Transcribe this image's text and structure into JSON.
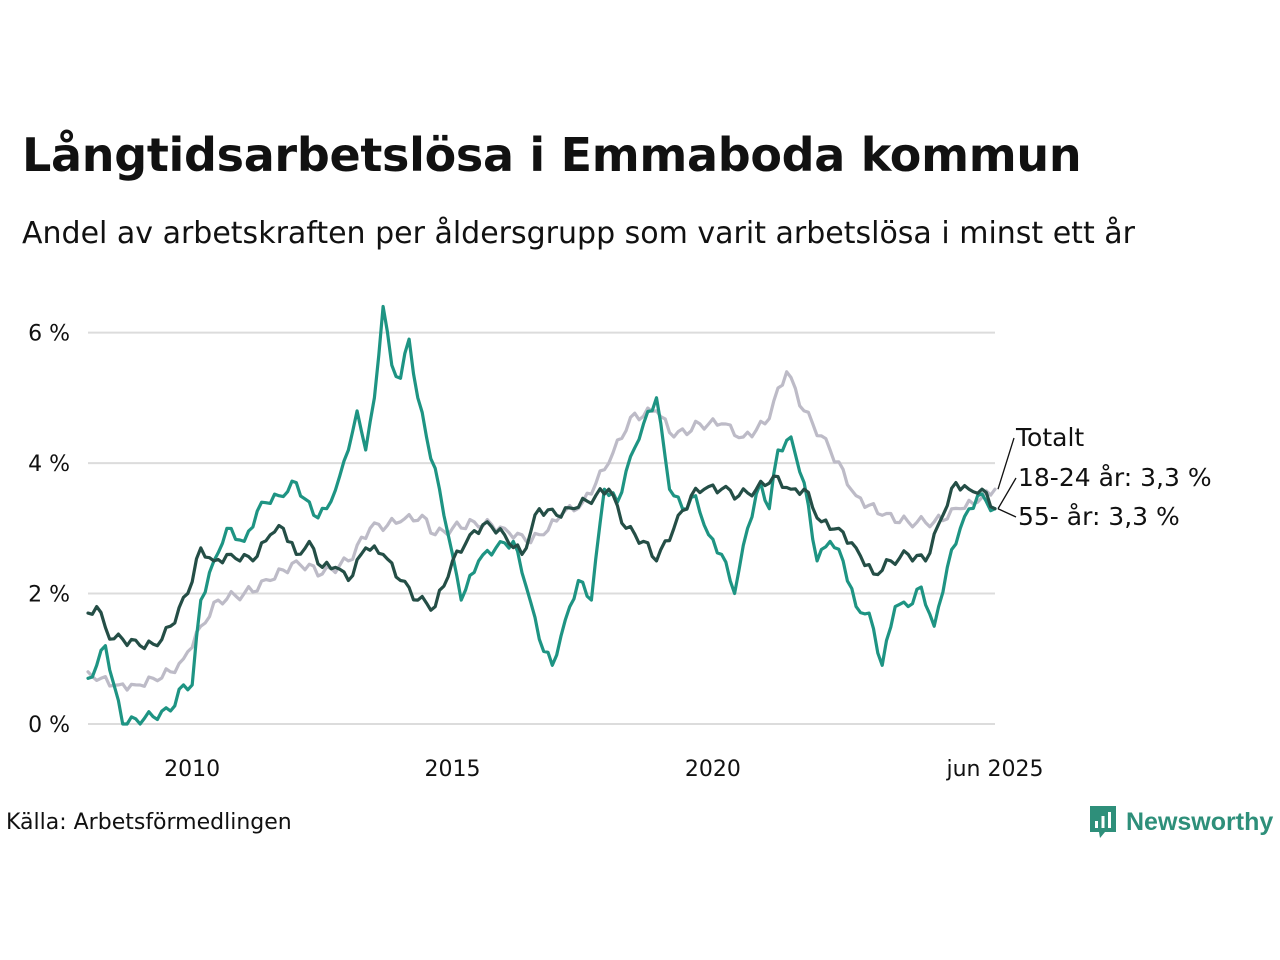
{
  "header": {
    "title": "Långtidsarbetslösa i Emmaboda kommun",
    "subtitle": "Andel av arbetskraften per åldersgrupp som varit arbetslösa i minst ett år"
  },
  "footer": {
    "source": "Källa: Arbetsförmedlingen",
    "brand": "Newsworthy",
    "brand_icon": "bar-chart-speech-bubble-icon"
  },
  "colors": {
    "totalt": "#bdbbc7",
    "age_18_24": "#1e9483",
    "age_55": "#244e46",
    "grid": "#dcdcdc",
    "brand": "#2e8f7a"
  },
  "chart_data": {
    "type": "line",
    "title": "Långtidsarbetslösa i Emmaboda kommun",
    "subtitle": "Andel av arbetskraften per åldersgrupp som varit arbetslösa i minst ett år",
    "xlabel": "",
    "ylabel": "",
    "x_start": "2008-01",
    "x_end": "2025-06",
    "x_step": "month",
    "x_ticks": [
      {
        "date": "2010-01",
        "label": "2010"
      },
      {
        "date": "2015-01",
        "label": "2015"
      },
      {
        "date": "2020-01",
        "label": "2020"
      },
      {
        "date": "2025-06",
        "label": "jun 2025"
      }
    ],
    "ylim": [
      0,
      6.5
    ],
    "y_ticks": [
      {
        "value": 0,
        "label": "0 %"
      },
      {
        "value": 2,
        "label": "2 %"
      },
      {
        "value": 4,
        "label": "4 %"
      },
      {
        "value": 6,
        "label": "6 %"
      }
    ],
    "grid": true,
    "legend": "inline labels at right end",
    "series": [
      {
        "name": "Totalt",
        "label": "Totalt",
        "color_key": "totalt",
        "anchors": [
          [
            "2008-01",
            0.8
          ],
          [
            "2008-04",
            0.7
          ],
          [
            "2008-08",
            0.6
          ],
          [
            "2008-12",
            0.6
          ],
          [
            "2009-04",
            0.7
          ],
          [
            "2009-08",
            0.8
          ],
          [
            "2009-11",
            1.0
          ],
          [
            "2010-03",
            1.5
          ],
          [
            "2010-07",
            1.9
          ],
          [
            "2011-01",
            2.0
          ],
          [
            "2011-07",
            2.2
          ],
          [
            "2012-01",
            2.5
          ],
          [
            "2012-07",
            2.3
          ],
          [
            "2013-01",
            2.5
          ],
          [
            "2013-06",
            3.0
          ],
          [
            "2014-01",
            3.1
          ],
          [
            "2014-06",
            3.2
          ],
          [
            "2014-09",
            2.9
          ],
          [
            "2015-01",
            3.0
          ],
          [
            "2015-06",
            3.1
          ],
          [
            "2016-01",
            3.0
          ],
          [
            "2016-06",
            2.8
          ],
          [
            "2016-10",
            2.9
          ],
          [
            "2017-02",
            3.2
          ],
          [
            "2017-07",
            3.4
          ],
          [
            "2018-01",
            4.0
          ],
          [
            "2018-06",
            4.7
          ],
          [
            "2018-12",
            4.8
          ],
          [
            "2019-04",
            4.4
          ],
          [
            "2019-10",
            4.6
          ],
          [
            "2020-03",
            4.6
          ],
          [
            "2020-08",
            4.4
          ],
          [
            "2021-01",
            4.6
          ],
          [
            "2021-06",
            5.4
          ],
          [
            "2021-10",
            4.8
          ],
          [
            "2022-04",
            4.2
          ],
          [
            "2022-10",
            3.5
          ],
          [
            "2023-04",
            3.2
          ],
          [
            "2023-10",
            3.1
          ],
          [
            "2024-04",
            3.1
          ],
          [
            "2024-10",
            3.3
          ],
          [
            "2025-02",
            3.4
          ],
          [
            "2025-06",
            3.6
          ]
        ]
      },
      {
        "name": "18-24 år",
        "label": "18-24 år: 3,3 %",
        "color_key": "age_18_24",
        "anchors": [
          [
            "2008-01",
            0.7
          ],
          [
            "2008-03",
            0.9
          ],
          [
            "2008-05",
            1.2
          ],
          [
            "2008-07",
            0.6
          ],
          [
            "2008-09",
            0.0
          ],
          [
            "2009-08",
            0.2
          ],
          [
            "2009-11",
            0.6
          ],
          [
            "2010-01",
            0.6
          ],
          [
            "2010-03",
            1.9
          ],
          [
            "2010-06",
            2.5
          ],
          [
            "2010-09",
            3.0
          ],
          [
            "2011-01",
            2.8
          ],
          [
            "2011-05",
            3.4
          ],
          [
            "2011-09",
            3.5
          ],
          [
            "2012-01",
            3.7
          ],
          [
            "2012-05",
            3.2
          ],
          [
            "2012-08",
            3.3
          ],
          [
            "2012-11",
            3.8
          ],
          [
            "2013-01",
            4.2
          ],
          [
            "2013-03",
            4.8
          ],
          [
            "2013-05",
            4.2
          ],
          [
            "2013-07",
            5.0
          ],
          [
            "2013-09",
            6.4
          ],
          [
            "2013-11",
            5.5
          ],
          [
            "2014-01",
            5.3
          ],
          [
            "2014-03",
            5.9
          ],
          [
            "2014-05",
            5.0
          ],
          [
            "2014-07",
            4.4
          ],
          [
            "2014-10",
            3.6
          ],
          [
            "2015-01",
            2.6
          ],
          [
            "2015-03",
            1.9
          ],
          [
            "2015-07",
            2.5
          ],
          [
            "2015-11",
            2.7
          ],
          [
            "2016-03",
            2.8
          ],
          [
            "2016-06",
            2.1
          ],
          [
            "2016-09",
            1.3
          ],
          [
            "2016-12",
            0.9
          ],
          [
            "2017-03",
            1.6
          ],
          [
            "2017-06",
            2.2
          ],
          [
            "2017-09",
            1.9
          ],
          [
            "2017-12",
            3.6
          ],
          [
            "2018-03",
            3.4
          ],
          [
            "2018-06",
            4.1
          ],
          [
            "2018-09",
            4.6
          ],
          [
            "2018-12",
            5.0
          ],
          [
            "2019-03",
            3.6
          ],
          [
            "2019-06",
            3.3
          ],
          [
            "2019-09",
            3.5
          ],
          [
            "2019-12",
            2.9
          ],
          [
            "2020-03",
            2.6
          ],
          [
            "2020-06",
            2.0
          ],
          [
            "2020-09",
            3.0
          ],
          [
            "2020-12",
            3.7
          ],
          [
            "2021-02",
            3.3
          ],
          [
            "2021-04",
            4.2
          ],
          [
            "2021-07",
            4.4
          ],
          [
            "2021-10",
            3.7
          ],
          [
            "2022-01",
            2.5
          ],
          [
            "2022-04",
            2.8
          ],
          [
            "2022-07",
            2.5
          ],
          [
            "2022-10",
            1.8
          ],
          [
            "2023-01",
            1.7
          ],
          [
            "2023-04",
            0.9
          ],
          [
            "2023-07",
            1.8
          ],
          [
            "2023-10",
            1.8
          ],
          [
            "2024-01",
            2.1
          ],
          [
            "2024-04",
            1.5
          ],
          [
            "2024-07",
            2.4
          ],
          [
            "2024-10",
            3.0
          ],
          [
            "2025-02",
            3.5
          ],
          [
            "2025-06",
            3.3
          ]
        ]
      },
      {
        "name": "55- år",
        "label": "55- år: 3,3 %",
        "color_key": "age_55",
        "anchors": [
          [
            "2008-01",
            1.7
          ],
          [
            "2008-03",
            1.8
          ],
          [
            "2008-06",
            1.3
          ],
          [
            "2008-09",
            1.3
          ],
          [
            "2009-01",
            1.2
          ],
          [
            "2009-05",
            1.2
          ],
          [
            "2009-08",
            1.5
          ],
          [
            "2009-12",
            2.0
          ],
          [
            "2010-03",
            2.7
          ],
          [
            "2010-06",
            2.5
          ],
          [
            "2010-10",
            2.6
          ],
          [
            "2011-03",
            2.5
          ],
          [
            "2011-07",
            2.9
          ],
          [
            "2011-10",
            3.0
          ],
          [
            "2012-01",
            2.6
          ],
          [
            "2012-04",
            2.8
          ],
          [
            "2012-07",
            2.4
          ],
          [
            "2012-10",
            2.4
          ],
          [
            "2013-01",
            2.2
          ],
          [
            "2013-05",
            2.7
          ],
          [
            "2013-09",
            2.6
          ],
          [
            "2014-01",
            2.2
          ],
          [
            "2014-05",
            1.9
          ],
          [
            "2014-09",
            1.8
          ],
          [
            "2015-01",
            2.5
          ],
          [
            "2015-05",
            2.9
          ],
          [
            "2015-09",
            3.1
          ],
          [
            "2016-01",
            2.9
          ],
          [
            "2016-05",
            2.6
          ],
          [
            "2016-09",
            3.3
          ],
          [
            "2017-01",
            3.2
          ],
          [
            "2017-05",
            3.3
          ],
          [
            "2017-10",
            3.5
          ],
          [
            "2018-01",
            3.6
          ],
          [
            "2018-05",
            3.0
          ],
          [
            "2018-09",
            2.8
          ],
          [
            "2018-12",
            2.5
          ],
          [
            "2019-04",
            3.0
          ],
          [
            "2019-08",
            3.5
          ],
          [
            "2019-11",
            3.6
          ],
          [
            "2020-03",
            3.6
          ],
          [
            "2020-07",
            3.5
          ],
          [
            "2020-11",
            3.6
          ],
          [
            "2021-03",
            3.8
          ],
          [
            "2021-07",
            3.6
          ],
          [
            "2021-10",
            3.6
          ],
          [
            "2022-02",
            3.1
          ],
          [
            "2022-06",
            3.0
          ],
          [
            "2022-10",
            2.7
          ],
          [
            "2023-02",
            2.3
          ],
          [
            "2023-06",
            2.5
          ],
          [
            "2023-10",
            2.6
          ],
          [
            "2024-02",
            2.5
          ],
          [
            "2024-06",
            3.2
          ],
          [
            "2024-09",
            3.7
          ],
          [
            "2024-12",
            3.6
          ],
          [
            "2025-03",
            3.6
          ],
          [
            "2025-06",
            3.3
          ]
        ]
      }
    ]
  }
}
